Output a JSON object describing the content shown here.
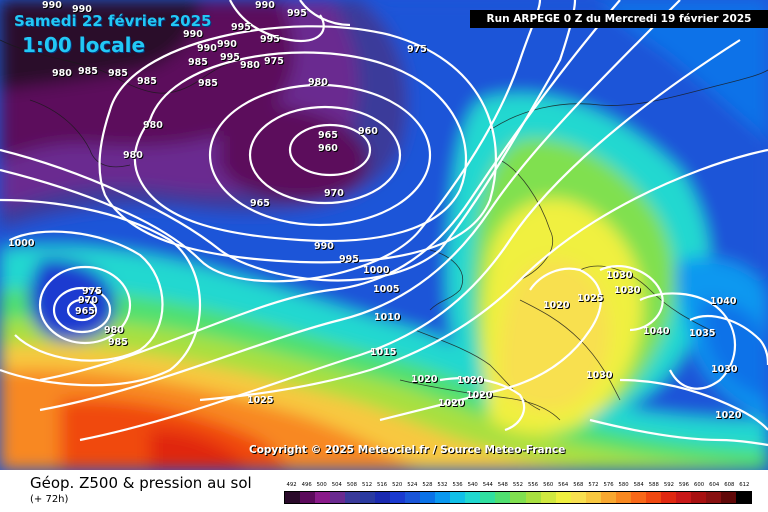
{
  "header": {
    "date": "Samedi 22 février 2025",
    "time": "1:00 locale",
    "run": "Run ARPEGE 0 Z du Mercredi 19 février 2025"
  },
  "copyright": "Copyright © 2025 Meteociel.fr / Source Meteo-France",
  "footer": {
    "title": "Géop. Z500 & pression au sol",
    "subtitle": "(+ 72h)"
  },
  "legend": {
    "values": [
      "492",
      "496",
      "500",
      "504",
      "508",
      "512",
      "516",
      "520",
      "524",
      "528",
      "532",
      "536",
      "540",
      "544",
      "548",
      "552",
      "556",
      "560",
      "564",
      "568",
      "572",
      "576",
      "580",
      "584",
      "588",
      "592",
      "596",
      "600",
      "604",
      "608",
      "612"
    ],
    "colors": [
      "#2a0a2a",
      "#5c0a5c",
      "#8a1a8a",
      "#6a2a90",
      "#3a3a9a",
      "#2a3aa0",
      "#1a2ab0",
      "#1a3ad0",
      "#1a55d8",
      "#0a72e8",
      "#0a98f0",
      "#10c0e8",
      "#20d8d0",
      "#30e0a0",
      "#50e070",
      "#80e050",
      "#a8e040",
      "#d0e840",
      "#f0f040",
      "#f8e050",
      "#f8c840",
      "#f8a830",
      "#f88820",
      "#f86818",
      "#f04810",
      "#e02810",
      "#c81818",
      "#a81010",
      "#881010",
      "#600808",
      "#000000"
    ]
  },
  "isobars": [
    {
      "text": "990",
      "cls": "top"
    },
    {
      "text": "990",
      "cls": "top"
    },
    {
      "text": "995",
      "cls": "top"
    },
    {
      "text": "990",
      "cls": "top"
    },
    {
      "text": "995",
      "cls": "top"
    },
    {
      "text": "990",
      "cls": "top"
    },
    {
      "text": "995",
      "cls": "top"
    },
    {
      "text": "990",
      "cls": "top"
    },
    {
      "text": "990",
      "cls": "top"
    },
    {
      "text": "995",
      "cls": "top"
    },
    {
      "text": "985",
      "cls": "top"
    },
    {
      "text": "980",
      "cls": "top"
    },
    {
      "text": "985",
      "cls": "top"
    },
    {
      "text": "985",
      "cls": "top"
    },
    {
      "text": "985",
      "cls": "top"
    },
    {
      "text": "975",
      "cls": "top"
    },
    {
      "text": "980",
      "cls": "top"
    },
    {
      "text": "975",
      "cls": "top"
    },
    {
      "text": "985",
      "cls": "top"
    },
    {
      "text": "980",
      "cls": "top"
    },
    {
      "text": "980",
      "cls": "top"
    },
    {
      "text": "980",
      "cls": "top"
    },
    {
      "text": "965",
      "cls": "top"
    },
    {
      "text": "960",
      "cls": "top"
    },
    {
      "text": "960",
      "cls": "top"
    },
    {
      "text": "970",
      "cls": "top"
    },
    {
      "text": "965",
      "cls": "top"
    },
    {
      "text": "1000",
      "cls": "top"
    },
    {
      "text": "990",
      "cls": "top"
    },
    {
      "text": "995",
      "cls": "top"
    },
    {
      "text": "975",
      "cls": "top"
    },
    {
      "text": "970",
      "cls": "top"
    },
    {
      "text": "965",
      "cls": "top"
    },
    {
      "text": "980",
      "cls": "top"
    },
    {
      "text": "985",
      "cls": "top"
    },
    {
      "text": "1000",
      "cls": "top"
    },
    {
      "text": "1005",
      "cls": "top"
    },
    {
      "text": "1010",
      "cls": "top"
    },
    {
      "text": "1015",
      "cls": "top"
    },
    {
      "text": "1020",
      "cls": "top"
    },
    {
      "text": "1020",
      "cls": "top"
    },
    {
      "text": "1020",
      "cls": "top"
    },
    {
      "text": "1020",
      "cls": "top"
    },
    {
      "text": "1025",
      "cls": "top"
    },
    {
      "text": "1020",
      "cls": "top"
    },
    {
      "text": "1025",
      "cls": "top"
    },
    {
      "text": "1030",
      "cls": "top"
    },
    {
      "text": "1030",
      "cls": "top"
    },
    {
      "text": "1040",
      "cls": "top"
    },
    {
      "text": "1040",
      "cls": "top"
    },
    {
      "text": "1035",
      "cls": "top"
    },
    {
      "text": "1030",
      "cls": "top"
    },
    {
      "text": "1030",
      "cls": "top"
    },
    {
      "text": "1020",
      "cls": "top"
    }
  ]
}
